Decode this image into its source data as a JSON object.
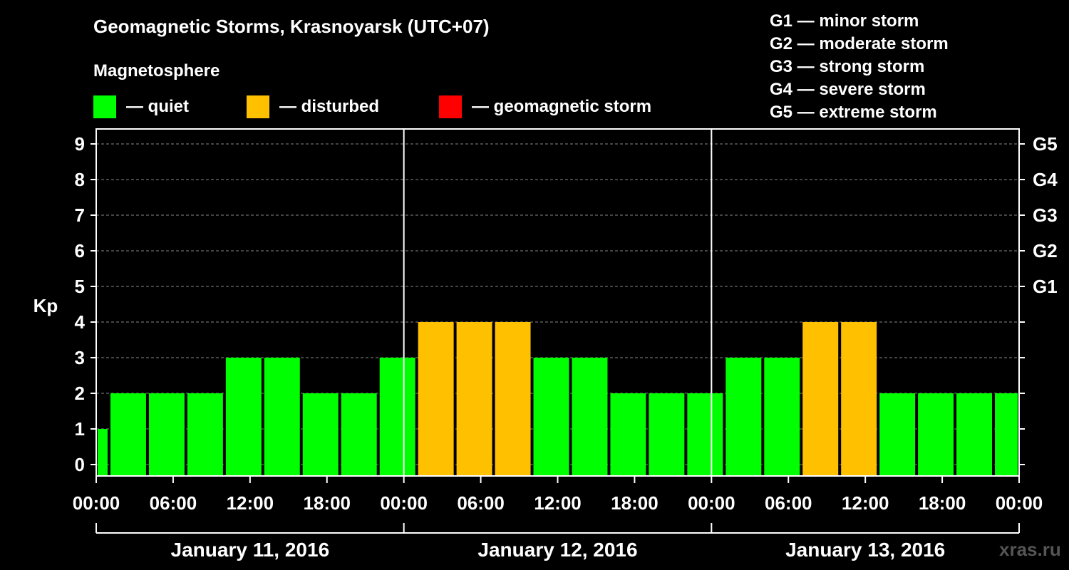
{
  "colors": {
    "quiet": "#00ff00",
    "disturbed": "#ffc000",
    "storm": "#ff0000",
    "background": "#000000",
    "grid": "#888888",
    "credit": "#555555"
  },
  "legend": {
    "title": "Magnetosphere",
    "items": [
      {
        "label": "— quiet",
        "color": "#00ff00"
      },
      {
        "label": "— disturbed",
        "color": "#ffc000"
      },
      {
        "label": "— geomagnetic storm",
        "color": "#ff0000"
      }
    ]
  },
  "g_levels": [
    "G1 — minor storm",
    "G2 — moderate storm",
    "G3 — strong storm",
    "G4 — severe storm",
    "G5 — extreme storm"
  ],
  "credit": "xras.ru",
  "chart_data": {
    "type": "bar",
    "title": "Geomagnetic Storms, Krasnoyarsk (UTC+07)",
    "ylabel": "Kp",
    "ylim": [
      0,
      9
    ],
    "yticks": [
      "0",
      "1",
      "2",
      "3",
      "4",
      "5",
      "6",
      "7",
      "8",
      "9"
    ],
    "right_ticks": [
      {
        "kp": 5,
        "label": "G1"
      },
      {
        "kp": 6,
        "label": "G2"
      },
      {
        "kp": 7,
        "label": "G3"
      },
      {
        "kp": 8,
        "label": "G4"
      },
      {
        "kp": 9,
        "label": "G5"
      }
    ],
    "xlim_hours": [
      0,
      72
    ],
    "xticks": [
      {
        "hour": 0,
        "label": "00:00"
      },
      {
        "hour": 6,
        "label": "06:00"
      },
      {
        "hour": 12,
        "label": "12:00"
      },
      {
        "hour": 18,
        "label": "18:00"
      },
      {
        "hour": 24,
        "label": "00:00"
      },
      {
        "hour": 30,
        "label": "06:00"
      },
      {
        "hour": 36,
        "label": "12:00"
      },
      {
        "hour": 42,
        "label": "18:00"
      },
      {
        "hour": 48,
        "label": "00:00"
      },
      {
        "hour": 54,
        "label": "06:00"
      },
      {
        "hour": 60,
        "label": "12:00"
      },
      {
        "hour": 66,
        "label": "18:00"
      },
      {
        "hour": 72,
        "label": "00:00"
      }
    ],
    "days": [
      {
        "label": "January 11, 2016",
        "start": 0,
        "end": 24
      },
      {
        "label": "January 12, 2016",
        "start": 24,
        "end": 48
      },
      {
        "label": "January 13, 2016",
        "start": 48,
        "end": 72
      }
    ],
    "grid": true,
    "bars": [
      {
        "start": 0,
        "end": 1,
        "kp": 1,
        "status": "quiet"
      },
      {
        "start": 1,
        "end": 4,
        "kp": 2,
        "status": "quiet"
      },
      {
        "start": 4,
        "end": 7,
        "kp": 2,
        "status": "quiet"
      },
      {
        "start": 7,
        "end": 10,
        "kp": 2,
        "status": "quiet"
      },
      {
        "start": 10,
        "end": 13,
        "kp": 3,
        "status": "quiet"
      },
      {
        "start": 13,
        "end": 16,
        "kp": 3,
        "status": "quiet"
      },
      {
        "start": 16,
        "end": 19,
        "kp": 2,
        "status": "quiet"
      },
      {
        "start": 19,
        "end": 22,
        "kp": 2,
        "status": "quiet"
      },
      {
        "start": 22,
        "end": 25,
        "kp": 3,
        "status": "quiet"
      },
      {
        "start": 25,
        "end": 28,
        "kp": 4,
        "status": "disturbed"
      },
      {
        "start": 28,
        "end": 31,
        "kp": 4,
        "status": "disturbed"
      },
      {
        "start": 31,
        "end": 34,
        "kp": 4,
        "status": "disturbed"
      },
      {
        "start": 34,
        "end": 37,
        "kp": 3,
        "status": "quiet"
      },
      {
        "start": 37,
        "end": 40,
        "kp": 3,
        "status": "quiet"
      },
      {
        "start": 40,
        "end": 43,
        "kp": 2,
        "status": "quiet"
      },
      {
        "start": 43,
        "end": 46,
        "kp": 2,
        "status": "quiet"
      },
      {
        "start": 46,
        "end": 49,
        "kp": 2,
        "status": "quiet"
      },
      {
        "start": 49,
        "end": 52,
        "kp": 3,
        "status": "quiet"
      },
      {
        "start": 52,
        "end": 55,
        "kp": 3,
        "status": "quiet"
      },
      {
        "start": 55,
        "end": 58,
        "kp": 4,
        "status": "disturbed"
      },
      {
        "start": 58,
        "end": 61,
        "kp": 4,
        "status": "disturbed"
      },
      {
        "start": 61,
        "end": 64,
        "kp": 2,
        "status": "quiet"
      },
      {
        "start": 64,
        "end": 67,
        "kp": 2,
        "status": "quiet"
      },
      {
        "start": 67,
        "end": 70,
        "kp": 2,
        "status": "quiet"
      },
      {
        "start": 70,
        "end": 72,
        "kp": 2,
        "status": "quiet"
      }
    ]
  }
}
